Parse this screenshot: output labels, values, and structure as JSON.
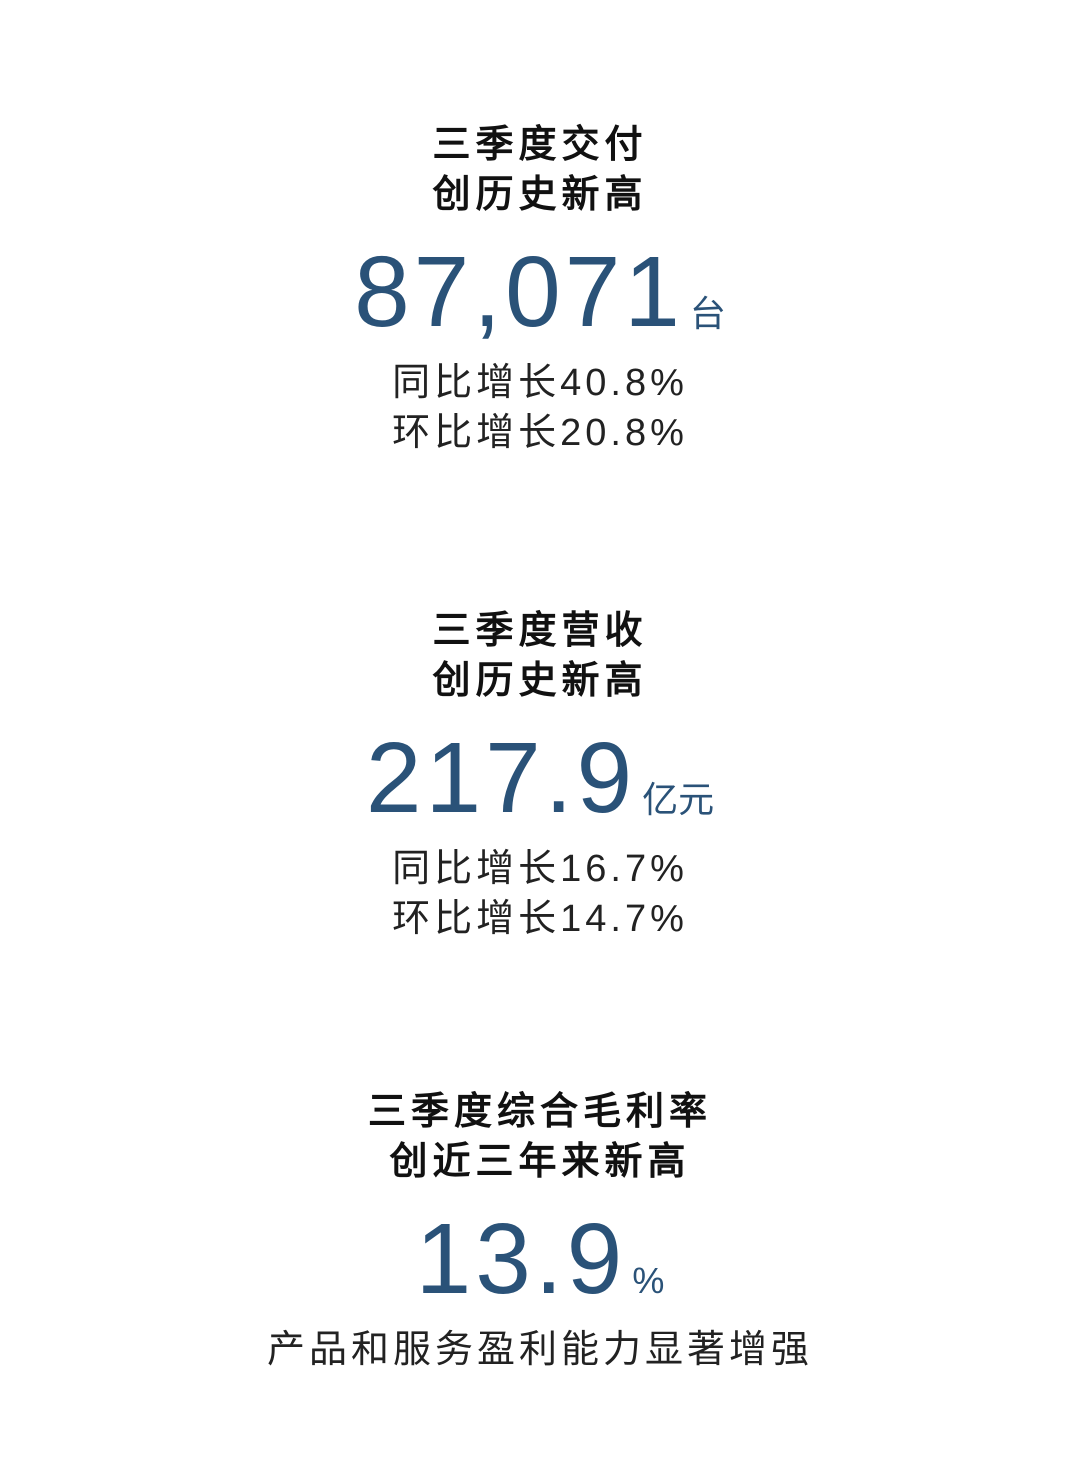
{
  "sections": [
    {
      "title_lines": [
        "三季度交付",
        "创历史新高"
      ],
      "value": "87,071",
      "unit": "台",
      "details": [
        "同比增长40.8%",
        "环比增长20.8%"
      ]
    },
    {
      "title_lines": [
        "三季度营收",
        "创历史新高"
      ],
      "value": "217.9",
      "unit": "亿元",
      "details": [
        "同比增长16.7%",
        "环比增长14.7%"
      ]
    },
    {
      "title_lines": [
        "三季度综合毛利率",
        "创近三年来新高"
      ],
      "value": "13.9",
      "unit": "%",
      "details": [
        "产品和服务盈利能力显著增强"
      ]
    }
  ],
  "colors": {
    "accent": "#2a5278",
    "text": "#111111"
  }
}
